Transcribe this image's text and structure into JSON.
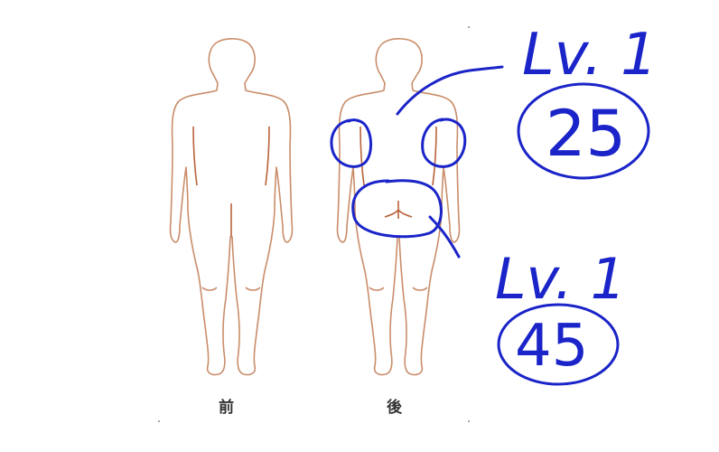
{
  "figure": {
    "front_label": "前",
    "back_label": "後",
    "body_outline_color": "#c98d6a",
    "line_color": "#b8633a"
  },
  "annotations": {
    "ink_color": "#1a24c8",
    "upper": {
      "level": "Lv. 1",
      "score": "25"
    },
    "lower": {
      "level": "Lv. 1",
      "score": "45"
    }
  }
}
